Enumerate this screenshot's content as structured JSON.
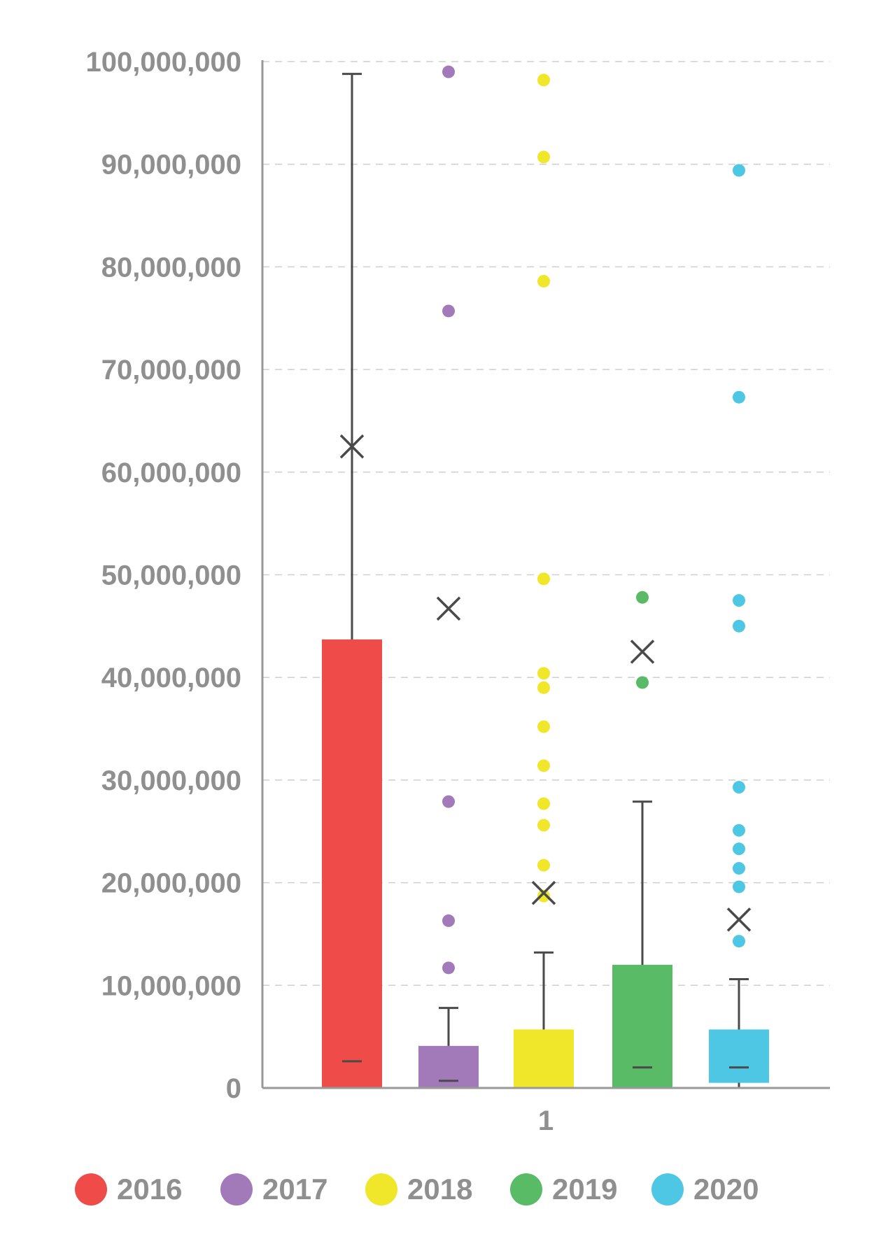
{
  "chart_data": {
    "type": "box",
    "categories": [
      "1"
    ],
    "ylim": [
      0,
      100000000
    ],
    "yticks": [
      0,
      10000000,
      20000000,
      30000000,
      40000000,
      50000000,
      60000000,
      70000000,
      80000000,
      90000000,
      100000000
    ],
    "ytick_labels": [
      "0",
      "10,000,000",
      "20,000,000",
      "30,000,000",
      "40,000,000",
      "50,000,000",
      "60,000,000",
      "70,000,000",
      "80,000,000",
      "90,000,000",
      "100,000,000"
    ],
    "grid": true,
    "legend_position": "bottom",
    "series": [
      {
        "name": "2016",
        "color": "#ef4c49",
        "q1": 0,
        "q3": 43700000,
        "median": 2600000,
        "whisker_low": 0,
        "whisker_high": 98800000,
        "mean": 62500000,
        "outliers": []
      },
      {
        "name": "2017",
        "color": "#a27ab9",
        "q1": 0,
        "q3": 4100000,
        "median": 700000,
        "whisker_low": 0,
        "whisker_high": 7800000,
        "mean": 46700000,
        "outliers": [
          99000000,
          75700000,
          27900000,
          16300000,
          11700000
        ]
      },
      {
        "name": "2018",
        "color": "#f0e62a",
        "q1": 0,
        "q3": 5700000,
        "median": 0,
        "whisker_low": 0,
        "whisker_high": 13200000,
        "mean": 19000000,
        "outliers": [
          98200000,
          90700000,
          78600000,
          49600000,
          40400000,
          39000000,
          35200000,
          31400000,
          27700000,
          25600000,
          21700000,
          18700000
        ]
      },
      {
        "name": "2019",
        "color": "#59bb65",
        "q1": 0,
        "q3": 12000000,
        "median": 2000000,
        "whisker_low": 0,
        "whisker_high": 27900000,
        "mean": 42500000,
        "outliers": [
          47800000,
          39500000
        ]
      },
      {
        "name": "2020",
        "color": "#4ec7e4",
        "q1": 500000,
        "q3": 5700000,
        "median": 2000000,
        "whisker_low": 0,
        "whisker_high": 10600000,
        "mean": 16400000,
        "outliers": [
          89400000,
          67300000,
          47500000,
          45000000,
          29300000,
          25100000,
          23300000,
          21400000,
          19600000,
          14300000
        ]
      }
    ]
  },
  "colors": {
    "axis": "#999999",
    "grid": "#cfcfcf",
    "whisker": "#4a4a4a",
    "text": "#8f8f8f"
  },
  "legend": [
    {
      "label": "2016",
      "color": "#ef4c49"
    },
    {
      "label": "2017",
      "color": "#a27ab9"
    },
    {
      "label": "2018",
      "color": "#f0e62a"
    },
    {
      "label": "2019",
      "color": "#59bb65"
    },
    {
      "label": "2020",
      "color": "#4ec7e4"
    }
  ]
}
